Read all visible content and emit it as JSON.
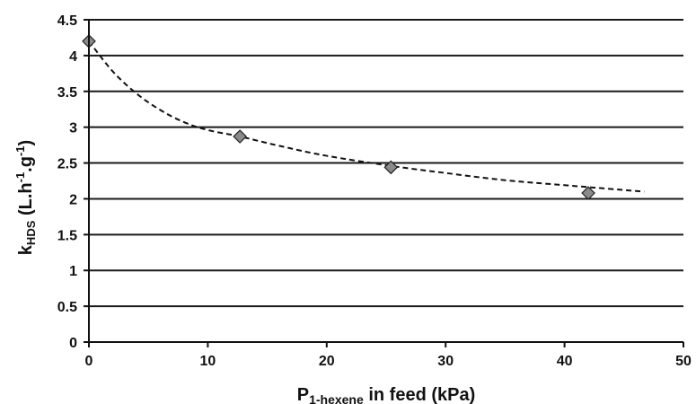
{
  "chart_data": {
    "type": "scatter",
    "x_axis": {
      "label_main": "P",
      "label_sub": "1-hexene",
      "label_tail": " in feed (kPa)",
      "range": [
        0,
        50
      ],
      "ticks": [
        0,
        10,
        20,
        30,
        40,
        50
      ],
      "tick_labels": [
        "0",
        "10",
        "20",
        "30",
        "40",
        "50"
      ]
    },
    "y_axis": {
      "label_k": "k",
      "label_sub": "HDS",
      "label_open": " (L.h",
      "label_sup1": "-1",
      "label_mid": ".g",
      "label_sup2": "-1",
      "label_close": ")",
      "range": [
        0,
        4.5
      ],
      "ticks": [
        0,
        0.5,
        1,
        1.5,
        2,
        2.5,
        3,
        3.5,
        4,
        4.5
      ],
      "tick_labels": [
        "0",
        "0.5",
        "1",
        "1.5",
        "2",
        "2.5",
        "3",
        "3.5",
        "4",
        "4.5"
      ]
    },
    "grid": "horizontal",
    "series": [
      {
        "marker": "diamond",
        "marker_color": "#8a8a8a",
        "points": [
          {
            "x": 0,
            "y": 4.2
          },
          {
            "x": 12.7,
            "y": 2.87
          },
          {
            "x": 25.4,
            "y": 2.44
          },
          {
            "x": 42,
            "y": 2.08
          }
        ]
      }
    ],
    "trendline": {
      "style": "dashed",
      "color": "#111111",
      "points": [
        {
          "x": 0,
          "y": 4.2
        },
        {
          "x": 2,
          "y": 3.78
        },
        {
          "x": 4,
          "y": 3.47
        },
        {
          "x": 6,
          "y": 3.24
        },
        {
          "x": 8,
          "y": 3.07
        },
        {
          "x": 10,
          "y": 2.96
        },
        {
          "x": 12.7,
          "y": 2.87
        },
        {
          "x": 16,
          "y": 2.74
        },
        {
          "x": 20,
          "y": 2.6
        },
        {
          "x": 25.4,
          "y": 2.46
        },
        {
          "x": 30,
          "y": 2.36
        },
        {
          "x": 35,
          "y": 2.26
        },
        {
          "x": 40,
          "y": 2.19
        },
        {
          "x": 46.7,
          "y": 2.1
        }
      ]
    }
  }
}
